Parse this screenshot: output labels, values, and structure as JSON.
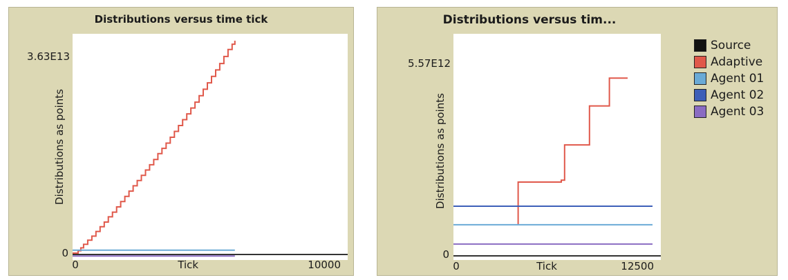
{
  "chart_data": [
    {
      "type": "line",
      "title": "Distributions versus time tick",
      "xlabel": "Tick",
      "ylabel": "Distributions as points",
      "xlim": [
        0,
        10000
      ],
      "ylim": [
        0,
        36300000000000.0
      ],
      "x_tick_labels": [
        "0",
        "10000"
      ],
      "y_tick_labels": [
        "3.63E13",
        "0"
      ],
      "series": [
        {
          "color": "#e0584a",
          "step_points": [
            [
              0,
              0
            ],
            [
              200,
              400000000000.0
            ],
            [
              300,
              900000000000.0
            ],
            [
              400,
              1500000000000.0
            ],
            [
              550,
              2200000000000.0
            ],
            [
              700,
              2900000000000.0
            ],
            [
              850,
              3700000000000.0
            ],
            [
              1000,
              4500000000000.0
            ],
            [
              1150,
              5300000000000.0
            ],
            [
              1300,
              6200000000000.0
            ],
            [
              1450,
              7000000000000.0
            ],
            [
              1600,
              7900000000000.0
            ],
            [
              1750,
              8800000000000.0
            ],
            [
              1900,
              9700000000000.0
            ],
            [
              2050,
              10600000000000.0
            ],
            [
              2200,
              11500000000000.0
            ],
            [
              2350,
              12400000000000.0
            ],
            [
              2500,
              13300000000000.0
            ],
            [
              2650,
              14200000000000.0
            ],
            [
              2800,
              15100000000000.0
            ],
            [
              2950,
              16000000000000.0
            ],
            [
              3100,
              17000000000000.0
            ],
            [
              3250,
              17900000000000.0
            ],
            [
              3400,
              18800000000000.0
            ],
            [
              3550,
              19800000000000.0
            ],
            [
              3700,
              20800000000000.0
            ],
            [
              3850,
              21800000000000.0
            ],
            [
              4000,
              22800000000000.0
            ],
            [
              4150,
              23800000000000.0
            ],
            [
              4300,
              24800000000000.0
            ],
            [
              4450,
              25800000000000.0
            ],
            [
              4600,
              26900000000000.0
            ],
            [
              4750,
              28000000000000.0
            ],
            [
              4900,
              29100000000000.0
            ],
            [
              5050,
              30200000000000.0
            ],
            [
              5200,
              31300000000000.0
            ],
            [
              5350,
              32400000000000.0
            ],
            [
              5500,
              33600000000000.0
            ],
            [
              5650,
              34800000000000.0
            ],
            [
              5800,
              35700000000000.0
            ],
            [
              5900,
              36300000000000.0
            ]
          ]
        },
        {
          "color": "#6aaad6",
          "points": [
            [
              0,
              500000000000.0
            ],
            [
              5900,
              500000000000.0
            ]
          ]
        },
        {
          "color": "#8a6cc2",
          "points": [
            [
              0,
              -500000000000.0
            ],
            [
              5900,
              -500000000000.0
            ]
          ]
        }
      ]
    },
    {
      "type": "line",
      "title": "Distributions versus tim...",
      "xlabel": "Tick",
      "ylabel": "Distributions as points",
      "xlim": [
        0,
        12500
      ],
      "ylim": [
        0,
        5570000000000.0
      ],
      "x_tick_labels": [
        "0",
        "12500"
      ],
      "y_tick_labels": [
        "5.57E12",
        "0"
      ],
      "series": [
        {
          "name": "Source",
          "color": "#111111",
          "points": []
        },
        {
          "name": "Adaptive",
          "color": "#e0584a",
          "step_points": [
            [
              3900,
              800000000000.0
            ],
            [
              3900,
              1950000000000.0
            ],
            [
              6000,
              1950000000000.0
            ],
            [
              6500,
              2000000000000.0
            ],
            [
              6700,
              2950000000000.0
            ],
            [
              8000,
              2950000000000.0
            ],
            [
              8200,
              4000000000000.0
            ],
            [
              9000,
              4000000000000.0
            ],
            [
              9400,
              4750000000000.0
            ],
            [
              10500,
              4750000000000.0
            ]
          ]
        },
        {
          "name": "Agent 01",
          "color": "#6aaad6",
          "points": [
            [
              0,
              800000000000.0
            ],
            [
              12000,
              800000000000.0
            ]
          ]
        },
        {
          "name": "Agent 02",
          "color": "#3d5fb8",
          "points": [
            [
              0,
              1300000000000.0
            ],
            [
              12000,
              1300000000000.0
            ]
          ]
        },
        {
          "name": "Agent 03",
          "color": "#8a6cc2",
          "points": [
            [
              0,
              280000000000.0
            ],
            [
              12000,
              280000000000.0
            ]
          ]
        }
      ],
      "legend_position": "right"
    }
  ]
}
